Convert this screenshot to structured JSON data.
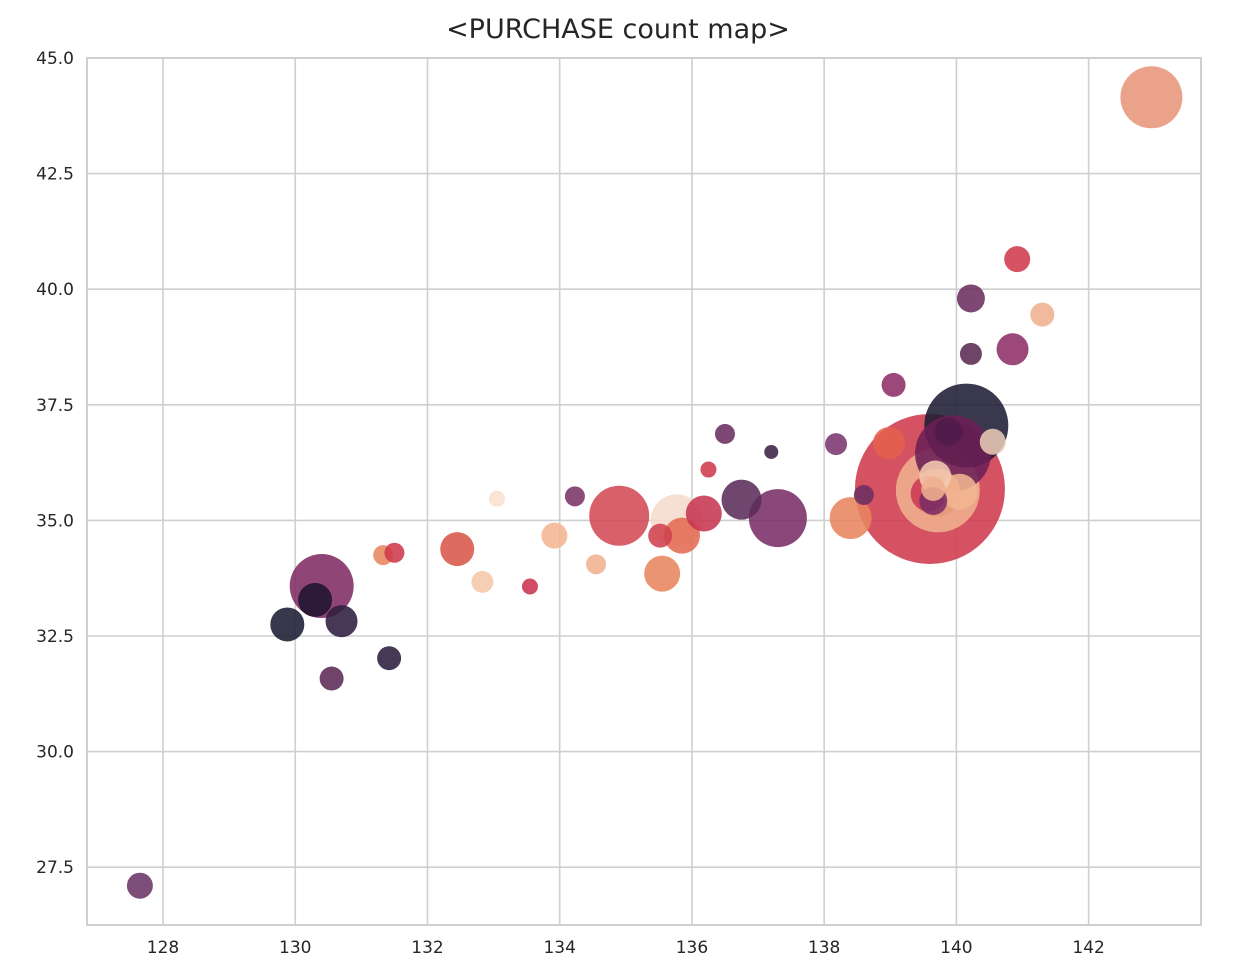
{
  "chart_data": {
    "type": "scatter",
    "title": "<PURCHASE count map>",
    "xlabel": "",
    "ylabel": "",
    "xlim": [
      126.85,
      143.7
    ],
    "ylim": [
      26.25,
      45.0
    ],
    "grid": true,
    "x_ticks": [
      "128",
      "130",
      "132",
      "134",
      "136",
      "138",
      "140",
      "142"
    ],
    "x_tick_values": [
      128,
      130,
      132,
      134,
      136,
      138,
      140,
      142
    ],
    "y_ticks": [
      "27.5",
      "30.0",
      "32.5",
      "35.0",
      "37.5",
      "40.0",
      "42.5",
      "45.0"
    ],
    "y_tick_values": [
      27.5,
      30.0,
      32.5,
      35.0,
      37.5,
      40.0,
      42.5,
      45.0
    ],
    "points": [
      {
        "x": 127.65,
        "y": 27.1,
        "size": 13,
        "color": "#6b3566"
      },
      {
        "x": 130.4,
        "y": 33.58,
        "size": 32,
        "color": "#7f2c63"
      },
      {
        "x": 130.3,
        "y": 33.28,
        "size": 17,
        "color": "#1f1430"
      },
      {
        "x": 129.88,
        "y": 32.75,
        "size": 17,
        "color": "#1d1d33"
      },
      {
        "x": 130.7,
        "y": 32.82,
        "size": 16,
        "color": "#2e1e3f"
      },
      {
        "x": 130.55,
        "y": 31.58,
        "size": 12,
        "color": "#5c2a55"
      },
      {
        "x": 131.42,
        "y": 32.02,
        "size": 12,
        "color": "#2a1f3d"
      },
      {
        "x": 131.33,
        "y": 34.25,
        "size": 10,
        "color": "#e8855f"
      },
      {
        "x": 131.5,
        "y": 34.3,
        "size": 10,
        "color": "#cf3a4c"
      },
      {
        "x": 132.45,
        "y": 34.38,
        "size": 17,
        "color": "#d9574a"
      },
      {
        "x": 132.83,
        "y": 33.67,
        "size": 11,
        "color": "#f5c7a8"
      },
      {
        "x": 133.05,
        "y": 35.47,
        "size": 8,
        "color": "#f8e0d0"
      },
      {
        "x": 133.55,
        "y": 33.57,
        "size": 8,
        "color": "#c93450"
      },
      {
        "x": 133.92,
        "y": 34.67,
        "size": 13,
        "color": "#f3b592"
      },
      {
        "x": 134.23,
        "y": 35.52,
        "size": 10,
        "color": "#7a3366"
      },
      {
        "x": 134.55,
        "y": 34.05,
        "size": 10,
        "color": "#f2b08f"
      },
      {
        "x": 134.9,
        "y": 35.1,
        "size": 30,
        "color": "#d34a55"
      },
      {
        "x": 135.52,
        "y": 34.67,
        "size": 12,
        "color": "#d0414f"
      },
      {
        "x": 135.77,
        "y": 35.0,
        "size": 26,
        "color": "#f6dccb"
      },
      {
        "x": 135.85,
        "y": 34.67,
        "size": 18,
        "color": "#e46a52"
      },
      {
        "x": 135.55,
        "y": 33.85,
        "size": 18,
        "color": "#e8855f"
      },
      {
        "x": 136.18,
        "y": 35.15,
        "size": 18,
        "color": "#c63651"
      },
      {
        "x": 136.25,
        "y": 36.1,
        "size": 8,
        "color": "#cf3a4c"
      },
      {
        "x": 136.5,
        "y": 36.87,
        "size": 10,
        "color": "#6b2f60"
      },
      {
        "x": 136.75,
        "y": 35.45,
        "size": 20,
        "color": "#5a2c5a"
      },
      {
        "x": 137.2,
        "y": 36.48,
        "size": 7,
        "color": "#3a2345"
      },
      {
        "x": 137.3,
        "y": 35.05,
        "size": 29,
        "color": "#7a2d66"
      },
      {
        "x": 138.18,
        "y": 36.65,
        "size": 11,
        "color": "#7a3570"
      },
      {
        "x": 138.4,
        "y": 35.05,
        "size": 21,
        "color": "#e8855f"
      },
      {
        "x": 138.6,
        "y": 35.55,
        "size": 10,
        "color": "#6b2f60"
      },
      {
        "x": 138.98,
        "y": 36.67,
        "size": 16,
        "color": "#e4604d"
      },
      {
        "x": 139.05,
        "y": 37.93,
        "size": 12,
        "color": "#8f2f68"
      },
      {
        "x": 139.6,
        "y": 35.68,
        "size": 75,
        "color": "#cf3a4c"
      },
      {
        "x": 139.72,
        "y": 35.65,
        "size": 42,
        "color": "#f0b08e"
      },
      {
        "x": 140.15,
        "y": 37.05,
        "size": 42,
        "color": "#1f1d33"
      },
      {
        "x": 139.95,
        "y": 36.45,
        "size": 38,
        "color": "#6b1f55"
      },
      {
        "x": 139.88,
        "y": 36.92,
        "size": 14,
        "color": "#4f1d4a"
      },
      {
        "x": 139.7,
        "y": 35.6,
        "size": 24,
        "color": "#e79a78"
      },
      {
        "x": 139.68,
        "y": 35.95,
        "size": 16,
        "color": "#f3cbb0"
      },
      {
        "x": 139.58,
        "y": 35.58,
        "size": 18,
        "color": "#cc3a55"
      },
      {
        "x": 139.65,
        "y": 35.68,
        "size": 12,
        "color": "#f0b08e"
      },
      {
        "x": 139.65,
        "y": 35.42,
        "size": 14,
        "color": "#7a2d66"
      },
      {
        "x": 140.05,
        "y": 35.62,
        "size": 18,
        "color": "#f3b592"
      },
      {
        "x": 140.55,
        "y": 36.7,
        "size": 13,
        "color": "#e8c9b6"
      },
      {
        "x": 140.22,
        "y": 39.8,
        "size": 14,
        "color": "#6b2f60"
      },
      {
        "x": 140.22,
        "y": 38.6,
        "size": 11,
        "color": "#5a2a52"
      },
      {
        "x": 140.85,
        "y": 38.7,
        "size": 16,
        "color": "#8f2f68"
      },
      {
        "x": 140.92,
        "y": 40.65,
        "size": 13,
        "color": "#cf3a4c"
      },
      {
        "x": 141.3,
        "y": 39.45,
        "size": 12,
        "color": "#f0b08e"
      },
      {
        "x": 142.95,
        "y": 44.15,
        "size": 31,
        "color": "#e8957a"
      }
    ],
    "colors": {
      "grid": "#cfcfcf",
      "text": "#262626"
    }
  }
}
